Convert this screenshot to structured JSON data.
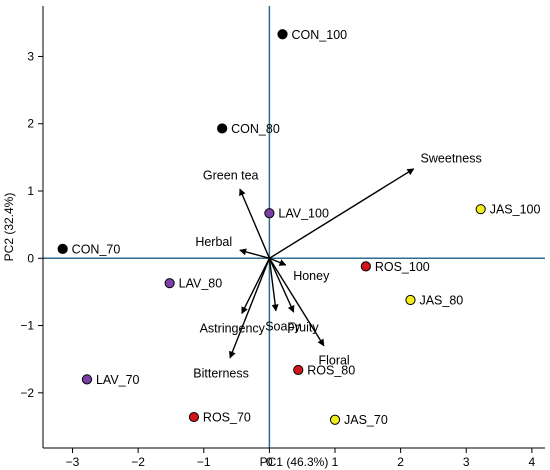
{
  "chart_data": {
    "type": "scatter",
    "title": "",
    "xlabel": "PC1 (46.3%)",
    "ylabel": "PC2 (32.4%)",
    "xlim": [
      -3.45,
      4.2
    ],
    "ylim": [
      -2.82,
      3.75
    ],
    "xticks": [
      -3,
      -2,
      -1,
      0,
      1,
      2,
      3,
      4
    ],
    "yticks": [
      -2,
      -1,
      0,
      1,
      2,
      3
    ],
    "grid": false,
    "reference_lines": {
      "x": 0,
      "y": 0,
      "color": "#2f6b8f"
    },
    "colors": {
      "CON": "#000000",
      "LAV": "#7b3fa6",
      "ROS": "#d0161b",
      "JAS": "#f2ee1d"
    },
    "points": [
      {
        "label": "CON_100",
        "group": "CON",
        "x": 0.2,
        "y": 3.33
      },
      {
        "label": "CON_80",
        "group": "CON",
        "x": -0.72,
        "y": 1.93
      },
      {
        "label": "CON_70",
        "group": "CON",
        "x": -3.15,
        "y": 0.14
      },
      {
        "label": "LAV_100",
        "group": "LAV",
        "x": 0.0,
        "y": 0.67
      },
      {
        "label": "LAV_80",
        "group": "LAV",
        "x": -1.52,
        "y": -0.37
      },
      {
        "label": "LAV_70",
        "group": "LAV",
        "x": -2.78,
        "y": -1.8
      },
      {
        "label": "ROS_100",
        "group": "ROS",
        "x": 1.47,
        "y": -0.12
      },
      {
        "label": "ROS_80",
        "group": "ROS",
        "x": 0.44,
        "y": -1.66
      },
      {
        "label": "ROS_70",
        "group": "ROS",
        "x": -1.15,
        "y": -2.36
      },
      {
        "label": "JAS_100",
        "group": "JAS",
        "x": 3.22,
        "y": 0.73
      },
      {
        "label": "JAS_80",
        "group": "JAS",
        "x": 2.15,
        "y": -0.62
      },
      {
        "label": "JAS_70",
        "group": "JAS",
        "x": 1.0,
        "y": -2.4
      }
    ],
    "vectors": [
      {
        "label": "Sweetness",
        "x": 2.2,
        "y": 1.33
      },
      {
        "label": "Green tea",
        "x": -0.45,
        "y": 1.03
      },
      {
        "label": "Herbal",
        "x": -0.45,
        "y": 0.12
      },
      {
        "label": "Honey",
        "x": 0.25,
        "y": -0.1
      },
      {
        "label": "Astringency",
        "x": -0.42,
        "y": -0.82
      },
      {
        "label": "Soapy",
        "x": 0.1,
        "y": -0.78
      },
      {
        "label": "Fruity",
        "x": 0.37,
        "y": -0.8
      },
      {
        "label": "Floral",
        "x": 0.83,
        "y": -1.3
      },
      {
        "label": "Bitterness",
        "x": -0.6,
        "y": -1.48
      }
    ]
  }
}
